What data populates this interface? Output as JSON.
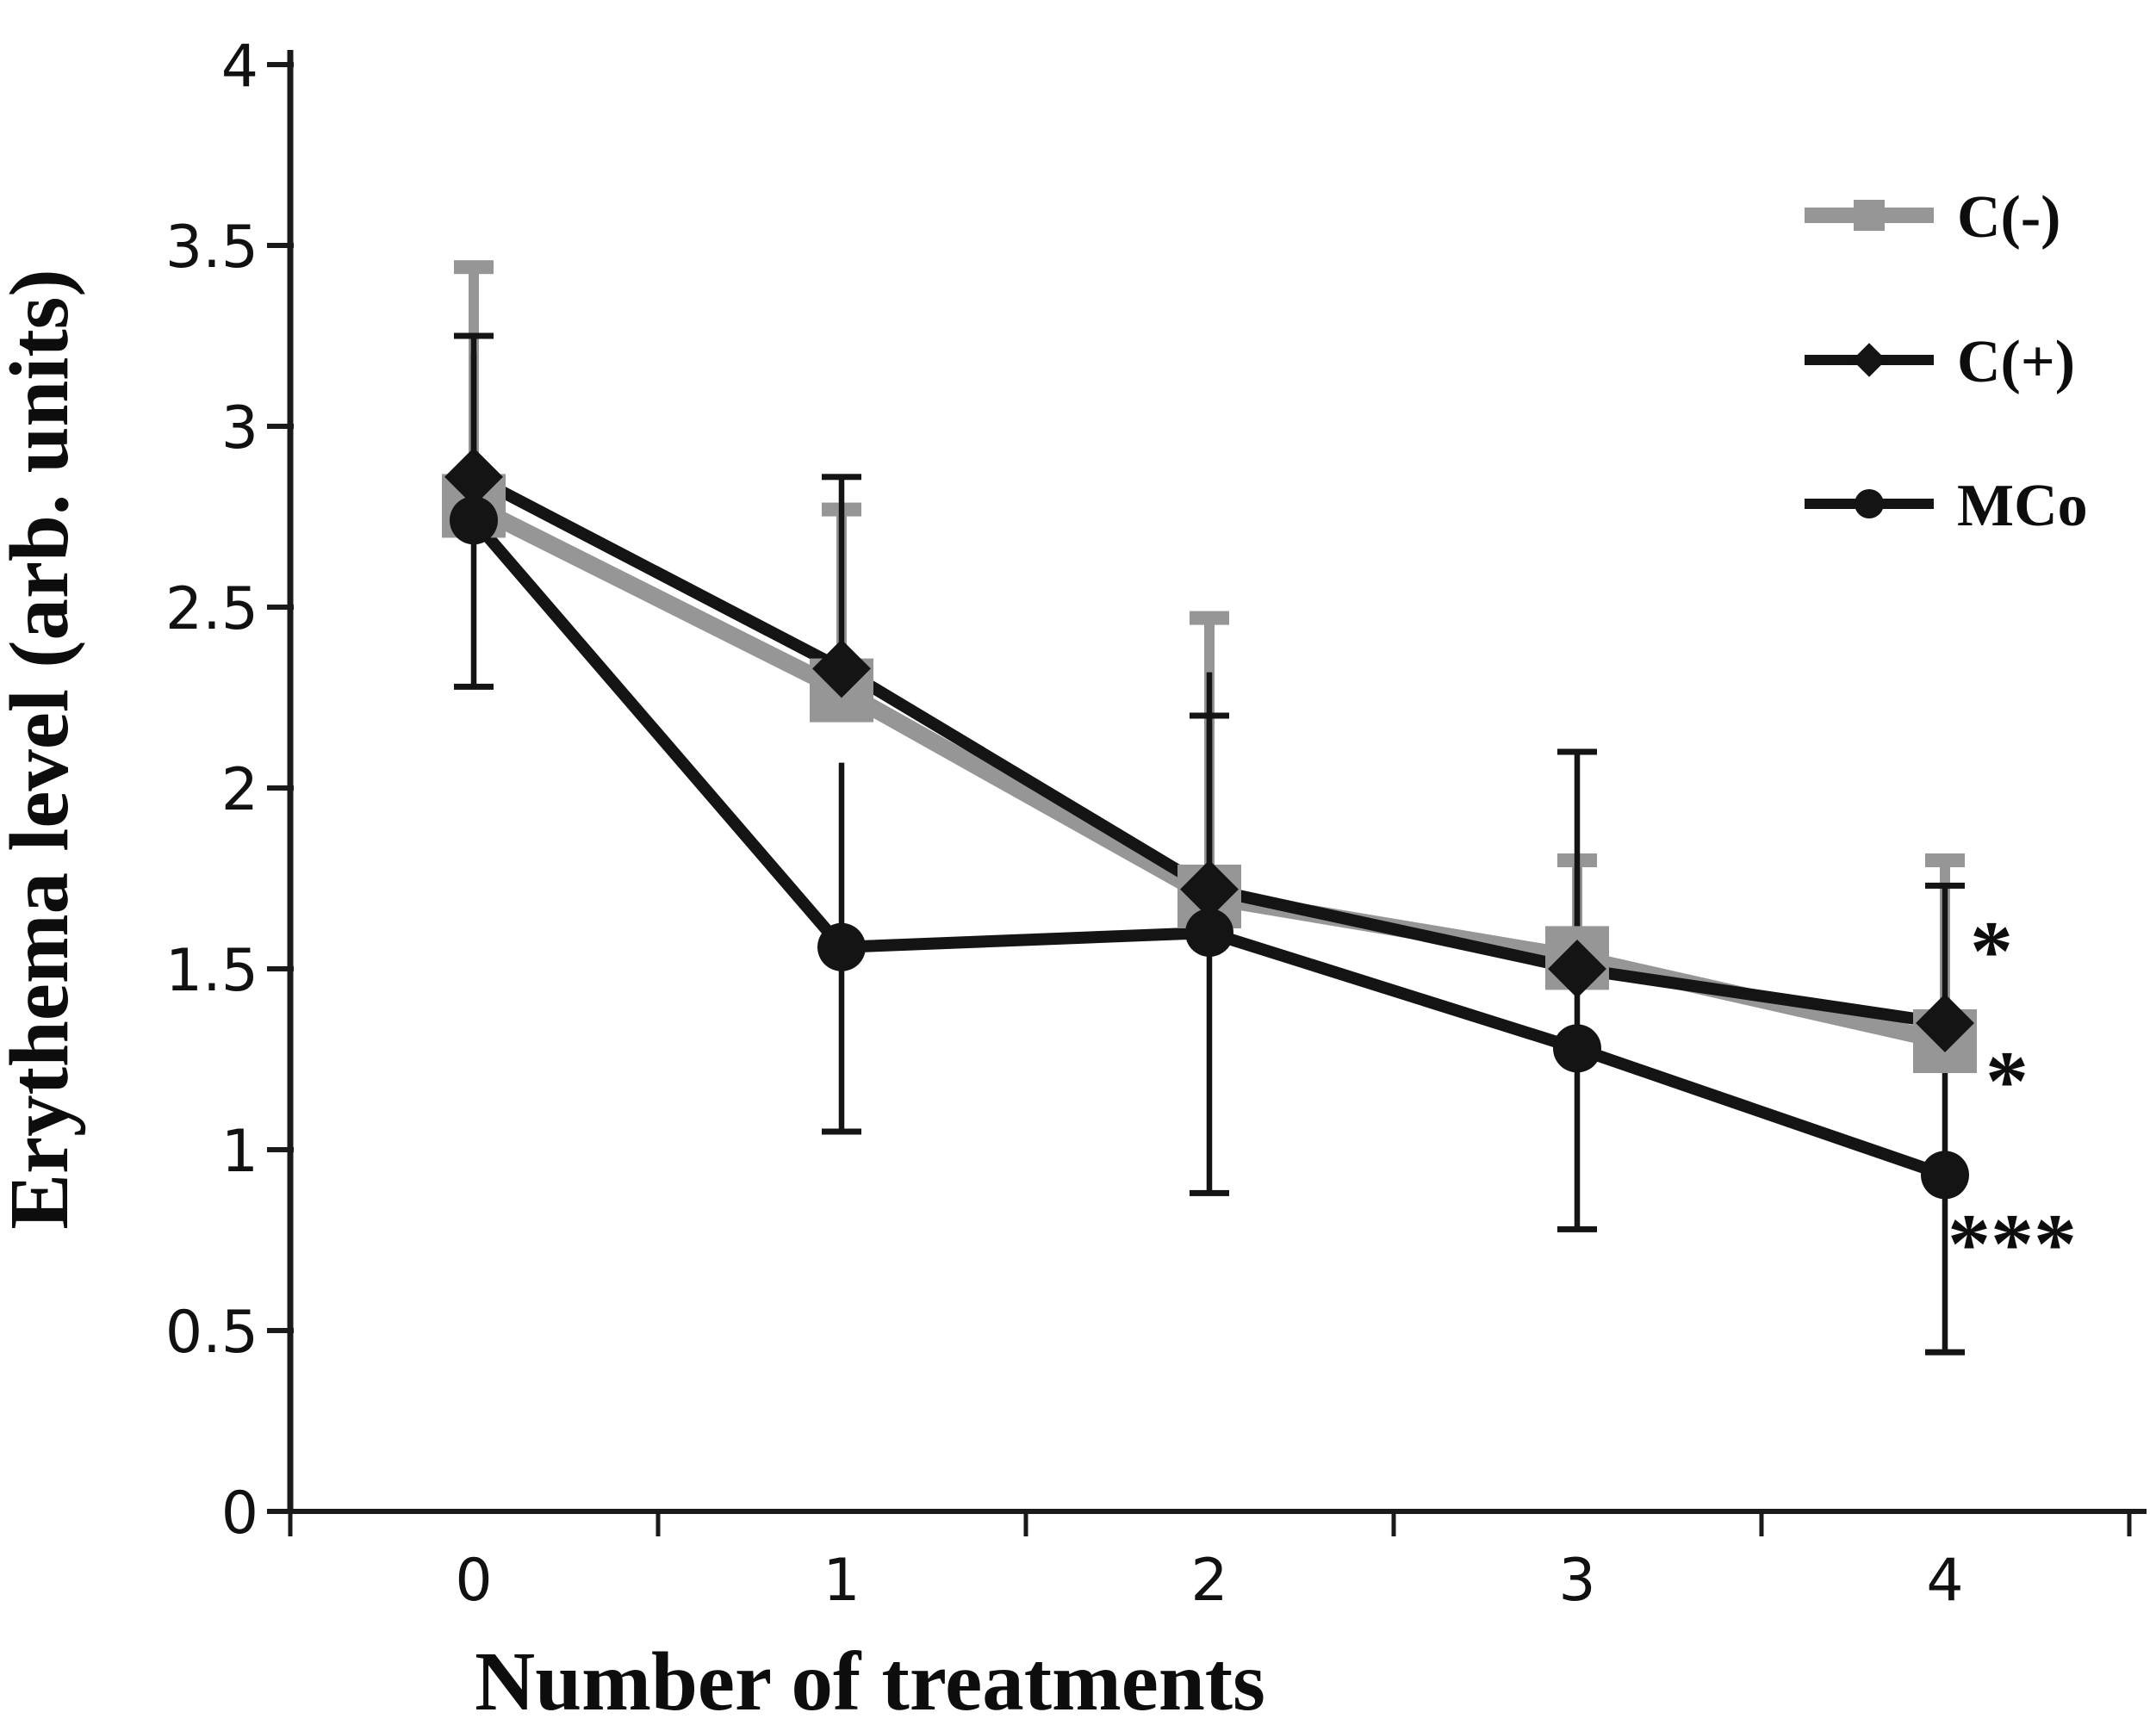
{
  "chart_data": {
    "type": "line",
    "title": "",
    "xlabel": "Number of treatments",
    "ylabel": "Erythema level (arb. units)",
    "x_values": [
      0,
      1,
      2,
      3,
      4
    ],
    "x_tick_labels": [
      "0",
      "1",
      "2",
      "3",
      "4"
    ],
    "y_tick_values": [
      4,
      3.5,
      3,
      2.5,
      2,
      1.5,
      1,
      0.5,
      0
    ],
    "y_tick_labels": [
      "4",
      "3.5",
      "3",
      "2.5",
      "2",
      "1.5",
      "1",
      "0.5",
      "0"
    ],
    "ylim": [
      0,
      4
    ],
    "grid": false,
    "legend_position": "upper-right",
    "axis_color": "#1a1a1a",
    "series": [
      {
        "name": "C(-)",
        "marker": "square",
        "color": "#969696",
        "values": [
          2.78,
          2.27,
          1.7,
          1.53,
          1.3
        ],
        "err_up": [
          0.66,
          0.5,
          0.77,
          0.27,
          0.5
        ],
        "err_down": [
          null,
          null,
          null,
          null,
          null
        ]
      },
      {
        "name": "C(+)",
        "marker": "diamond",
        "color": "#141414",
        "values": [
          2.86,
          2.33,
          1.72,
          1.5,
          1.35
        ],
        "err_up": [
          0.39,
          0.53,
          0.48,
          0.6,
          0.38
        ],
        "err_down": [
          null,
          null,
          null,
          null,
          null
        ]
      },
      {
        "name": "MCo",
        "marker": "circle",
        "color": "#141414",
        "values": [
          2.74,
          1.56,
          1.6,
          1.28,
          0.93
        ],
        "err_up": [
          null,
          null,
          null,
          null,
          null
        ],
        "err_down": [
          0.46,
          0.51,
          0.72,
          0.5,
          0.49
        ]
      }
    ],
    "annotations": [
      {
        "text": "*",
        "target_series": "C(+)",
        "x": 4,
        "y": 1.58
      },
      {
        "text": "*",
        "target_series": "C(-)",
        "x": 4,
        "y": 1.22
      },
      {
        "text": "***",
        "target_series": "MCo",
        "x": 4,
        "y": 0.77
      }
    ]
  }
}
